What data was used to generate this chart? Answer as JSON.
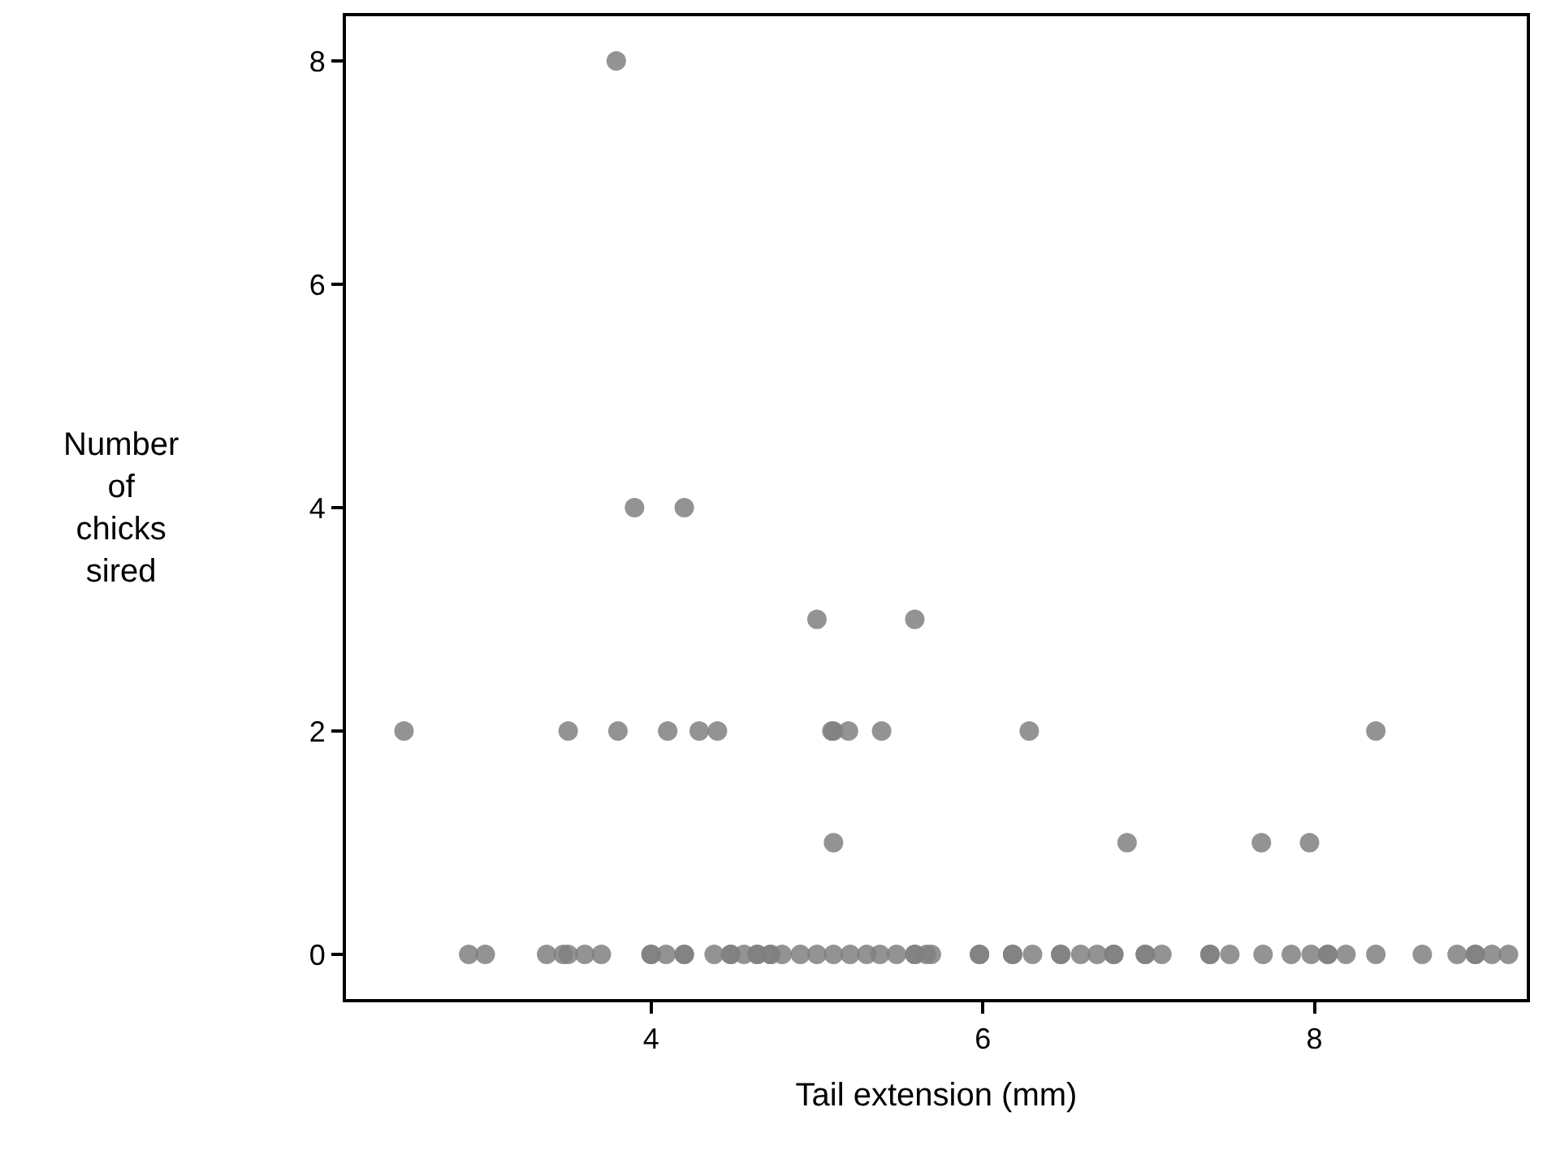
{
  "chart_data": {
    "type": "scatter",
    "xlabel": "Tail extension (mm)",
    "ylabel": "Number of chicks sired",
    "xlim": [
      2.16,
      9.28
    ],
    "ylim": [
      -0.4,
      8.4
    ],
    "xticks": [
      4,
      6,
      8
    ],
    "yticks": [
      0,
      2,
      4,
      6,
      8
    ],
    "grid": false,
    "marker": "circle",
    "series": [
      {
        "color": "#808080",
        "x": [
          3.79,
          3.9,
          4.2,
          5.0,
          5.59,
          2.51,
          3.5,
          3.8,
          4.1,
          4.29,
          4.4,
          5.09,
          5.1,
          5.19,
          5.39,
          6.28,
          8.37,
          5.1,
          6.87,
          7.68,
          7.97,
          2.9,
          3.0,
          3.37,
          3.47,
          3.5,
          3.6,
          3.7,
          4.0,
          4.0,
          4.09,
          4.2,
          4.2,
          4.38,
          4.48,
          4.48,
          4.56,
          4.64,
          4.64,
          4.72,
          4.72,
          4.79,
          4.9,
          5.0,
          5.1,
          5.2,
          5.3,
          5.38,
          5.48,
          5.59,
          5.59,
          5.66,
          5.69,
          5.98,
          5.98,
          6.18,
          6.18,
          6.3,
          6.47,
          6.47,
          6.59,
          6.69,
          6.79,
          6.79,
          6.98,
          6.98,
          7.08,
          7.37,
          7.37,
          7.49,
          7.69,
          7.86,
          7.98,
          8.08,
          8.08,
          8.19,
          8.37,
          8.65,
          8.86,
          8.97,
          8.97,
          9.07,
          9.17
        ],
        "values": [
          8,
          4,
          4,
          3,
          3,
          2,
          2,
          2,
          2,
          2,
          2,
          2,
          2,
          2,
          2,
          2,
          2,
          1,
          1,
          1,
          1,
          0,
          0,
          0,
          0,
          0,
          0,
          0,
          0,
          0,
          0,
          0,
          0,
          0,
          0,
          0,
          0,
          0,
          0,
          0,
          0,
          0,
          0,
          0,
          0,
          0,
          0,
          0,
          0,
          0,
          0,
          0,
          0,
          0,
          0,
          0,
          0,
          0,
          0,
          0,
          0,
          0,
          0,
          0,
          0,
          0,
          0,
          0,
          0,
          0,
          0,
          0,
          0,
          0,
          0,
          0,
          0,
          0,
          0,
          0,
          0,
          0,
          0
        ]
      }
    ]
  }
}
